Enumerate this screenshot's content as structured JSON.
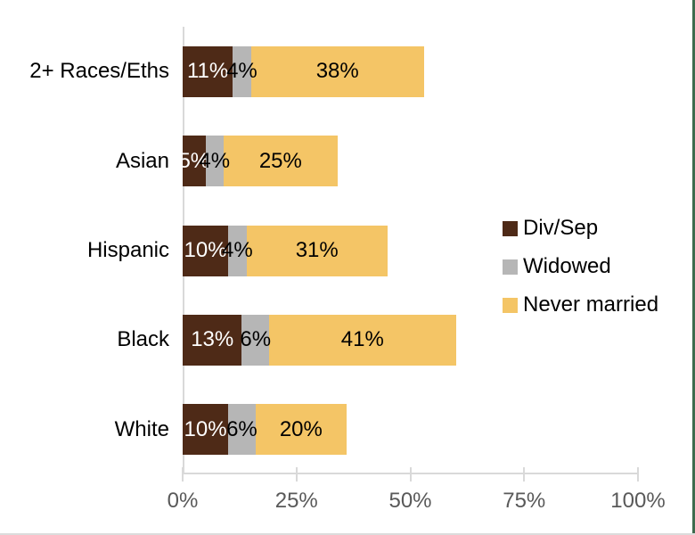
{
  "chart_data": {
    "type": "bar",
    "orientation": "horizontal",
    "stacked": true,
    "title": "",
    "xlabel": "",
    "ylabel": "",
    "categories": [
      "2+ Races/Eths",
      "Asian",
      "Hispanic",
      "Black",
      "White"
    ],
    "series": [
      {
        "name": "Div/Sep",
        "color": "#4e2a17",
        "label_color": "#ffffff",
        "values": [
          11,
          5,
          10,
          13,
          10
        ]
      },
      {
        "name": "Widowed",
        "color": "#b6b6b6",
        "label_color": "#000000",
        "values": [
          4,
          4,
          4,
          6,
          6
        ]
      },
      {
        "name": "Never married",
        "color": "#f4c566",
        "label_color": "#000000",
        "values": [
          38,
          25,
          31,
          41,
          20
        ]
      }
    ],
    "data_label_suffix": "%",
    "xlim": [
      0,
      100
    ],
    "x_tick_values": [
      0,
      25,
      50,
      75,
      100
    ],
    "x_tick_labels": [
      "0%",
      "25%",
      "50%",
      "75%",
      "100%"
    ],
    "grid": false,
    "legend_position": "right"
  },
  "style": {
    "axis_line_color": "#d9d9d9",
    "tick_text_color": "#595959",
    "category_text_color": "#000000",
    "frame_right_color": "#3f6b4e",
    "frame_bottom_color": "#dcdcdc"
  }
}
